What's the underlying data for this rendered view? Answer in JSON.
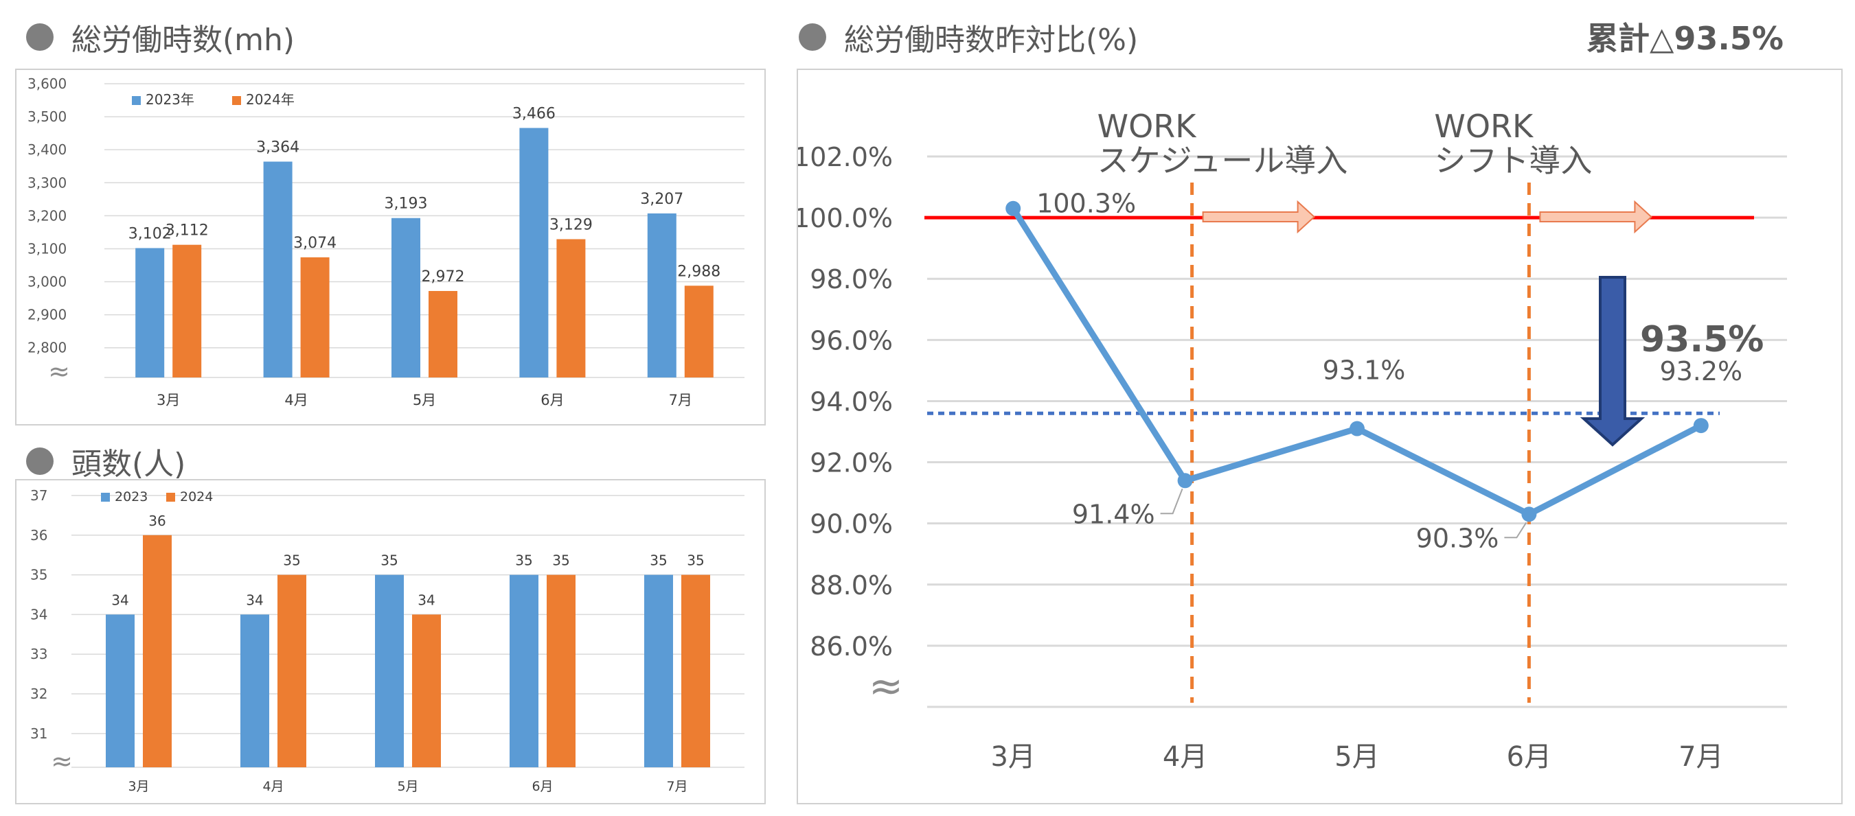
{
  "titles": {
    "hours": "総労働時数(mh)",
    "headcount": "頭数(人)",
    "ratio": "総労働時数昨対比(%)",
    "cumulative": "累計△93.5%"
  },
  "colors": {
    "series_2023": "#5b9bd5",
    "series_2024": "#ed7d31",
    "line": "#5b9bd5",
    "baseline": "#ff0000",
    "average": "#4472c4",
    "marker_line": "#ed7d31",
    "arrow_down": "#3a5ca8",
    "arrow_right": "#fbc8b0",
    "grid": "#d9d9d9"
  },
  "chart_data": [
    {
      "id": "hours",
      "type": "bar",
      "categories": [
        "3月",
        "4月",
        "5月",
        "6月",
        "7月"
      ],
      "series": [
        {
          "name": "2023年",
          "values": [
            3102,
            3364,
            3193,
            3466,
            3207
          ],
          "labels": [
            "3,102",
            "3,364",
            "3,193",
            "3,466",
            "3,207"
          ]
        },
        {
          "name": "2024年",
          "values": [
            3112,
            3074,
            2972,
            3129,
            2988
          ],
          "labels": [
            "3,112",
            "3,074",
            "2,972",
            "3,129",
            "2,988"
          ]
        }
      ],
      "ylim": [
        2710,
        3600
      ],
      "yticks": [
        2800,
        2900,
        3000,
        3100,
        3200,
        3300,
        3400,
        3500,
        3600
      ],
      "yticklabels": [
        "2,800",
        "2,900",
        "3,000",
        "3,100",
        "3,200",
        "3,300",
        "3,400",
        "3,500",
        "3,600"
      ],
      "axis_break_symbol": "≈",
      "grid": true,
      "legend": "top-left"
    },
    {
      "id": "headcount",
      "type": "bar",
      "categories": [
        "3月",
        "4月",
        "5月",
        "6月",
        "7月"
      ],
      "series": [
        {
          "name": "2023",
          "values": [
            34,
            34,
            35,
            35,
            35
          ],
          "labels": [
            "34",
            "34",
            "35",
            "35",
            "35"
          ]
        },
        {
          "name": "2024",
          "values": [
            36,
            35,
            34,
            35,
            35
          ],
          "labels": [
            "36",
            "35",
            "34",
            "35",
            "35"
          ]
        }
      ],
      "ylim": [
        30.15,
        37
      ],
      "yticks": [
        31,
        32,
        33,
        34,
        35,
        36,
        37
      ],
      "yticklabels": [
        "31",
        "32",
        "33",
        "34",
        "35",
        "36",
        "37"
      ],
      "axis_break_symbol": "≈",
      "grid": true,
      "legend": "top-left"
    },
    {
      "id": "ratio",
      "type": "line",
      "categories": [
        "3月",
        "4月",
        "5月",
        "6月",
        "7月"
      ],
      "values": [
        100.3,
        91.4,
        93.1,
        90.3,
        93.2
      ],
      "labels": [
        "100.3%",
        "91.4%",
        "93.1%",
        "90.3%",
        "93.2%"
      ],
      "ylim": [
        84,
        102
      ],
      "yticks": [
        86,
        88,
        90,
        92,
        94,
        96,
        98,
        100,
        102
      ],
      "yticklabels": [
        "86.0%",
        "88.0%",
        "90.0%",
        "92.0%",
        "94.0%",
        "96.0%",
        "98.0%",
        "100.0%",
        "102.0%"
      ],
      "baseline": 100,
      "average": 93.6,
      "axis_break_symbol": "≈",
      "grid": true,
      "annotations": {
        "work_schedule": {
          "line1": "WORK",
          "line2": "スケジュール導入",
          "position": 1.04
        },
        "work_shift": {
          "line1": "WORK",
          "line2": "シフト導入",
          "position": 3.0
        },
        "decrease_label": "93.5%"
      }
    }
  ]
}
